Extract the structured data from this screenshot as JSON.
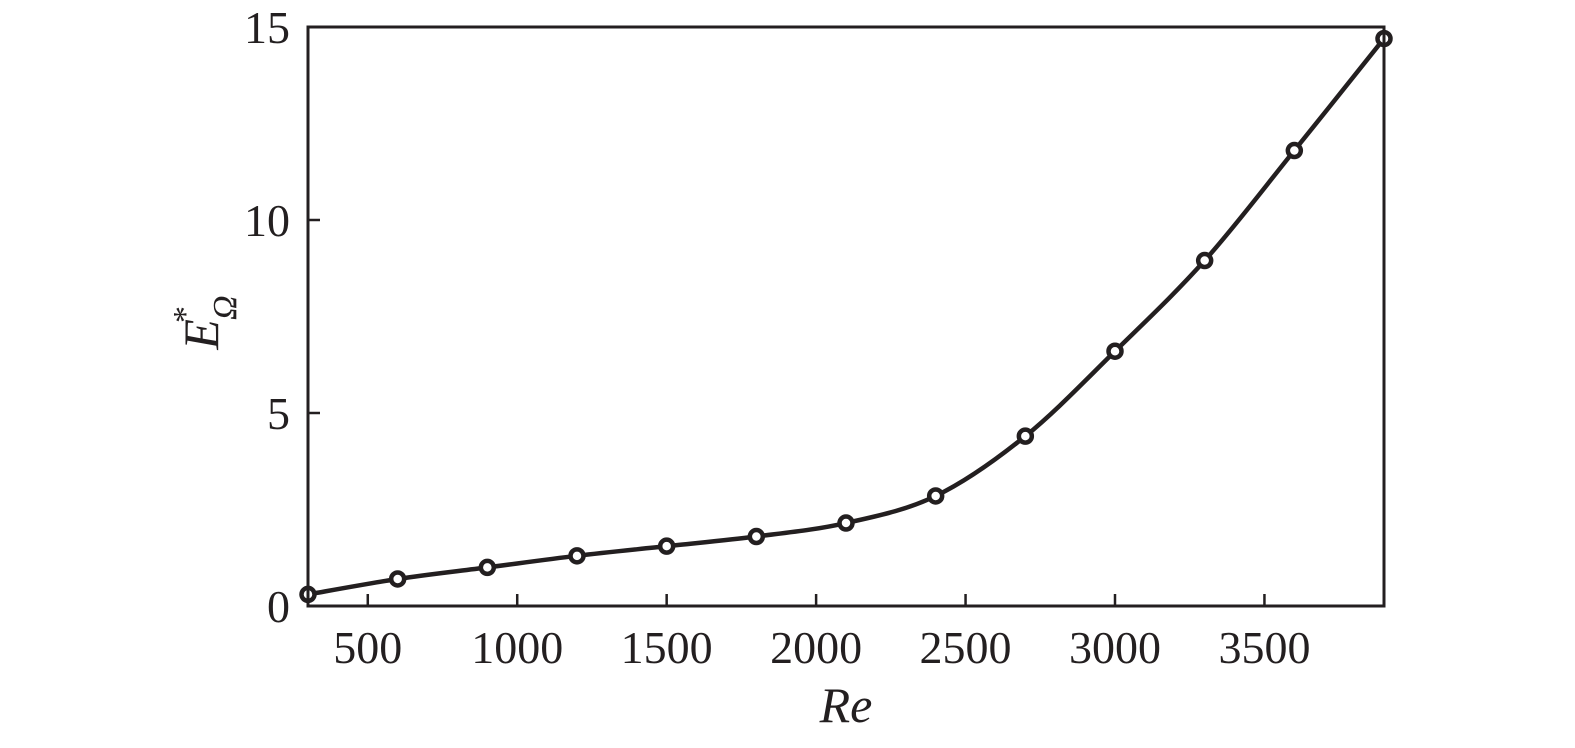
{
  "chart_data": {
    "type": "line",
    "title": "",
    "xlabel": "Re",
    "ylabel": {
      "main": "E",
      "superscript": "*",
      "subscript": "Ω"
    },
    "xlim": [
      300,
      3900
    ],
    "ylim": [
      0,
      15
    ],
    "xticks": [
      500,
      1000,
      1500,
      2000,
      2500,
      3000,
      3500
    ],
    "xtick_labels": [
      "500",
      "1000",
      "1500",
      "2000",
      "2500",
      "3000",
      "3500"
    ],
    "yticks": [
      0,
      5,
      10,
      15
    ],
    "ytick_labels": [
      "0",
      "5",
      "10",
      "15"
    ],
    "grid": false,
    "legend": "none",
    "color": "#231f20",
    "x": [
      300,
      600,
      900,
      1200,
      1500,
      1800,
      2100,
      2400,
      2700,
      3000,
      3300,
      3600,
      3900
    ],
    "series": [
      {
        "values": [
          0.3,
          0.7,
          1.0,
          1.3,
          1.55,
          1.8,
          2.15,
          2.85,
          4.4,
          6.6,
          8.95,
          11.8,
          14.7
        ]
      }
    ]
  }
}
